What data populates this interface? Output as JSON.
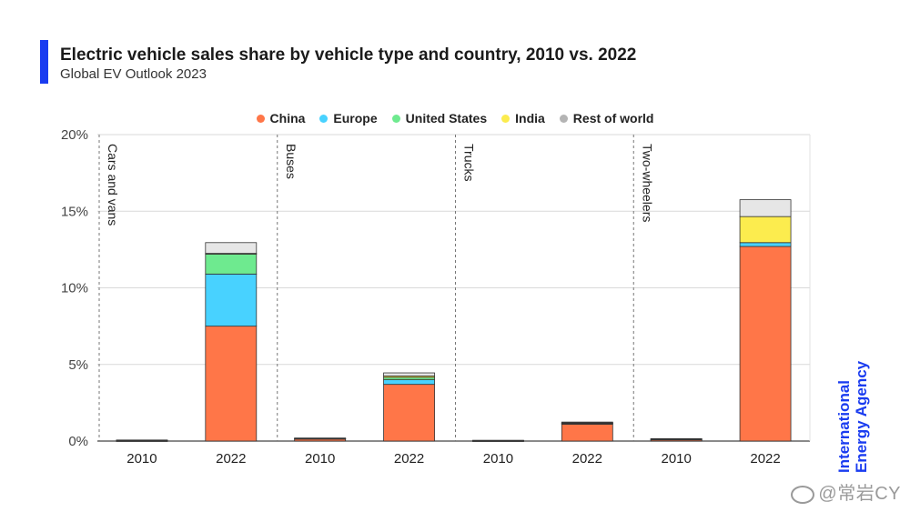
{
  "header": {
    "title": "Electric vehicle sales share by vehicle type and country, 2010 vs. 2022",
    "subtitle": "Global EV Outlook 2023"
  },
  "brand": {
    "line1": "International",
    "line2": "Energy Agency"
  },
  "watermark": {
    "text": "@常岩CY"
  },
  "colors": {
    "China": "#ff7648",
    "Europe": "#48d2ff",
    "United States": "#6eea8f",
    "India": "#fcec4e",
    "Rest of world": "#e6e6e6",
    "accent": "#1a3cf0"
  },
  "chart_data": {
    "type": "bar",
    "stacked": true,
    "yunit": "%",
    "ylim": [
      0,
      20
    ],
    "yticks": [
      0,
      5,
      10,
      15,
      20
    ],
    "ytick_labels": [
      "0%",
      "5%",
      "10%",
      "15%",
      "20%"
    ],
    "grid": true,
    "legend_position": "top-center",
    "series_names": [
      "China",
      "Europe",
      "United States",
      "India",
      "Rest of world"
    ],
    "groups": [
      {
        "label": "Cars and vans",
        "bars": [
          {
            "x": "2010",
            "values": [
              0.02,
              0.02,
              0.02,
              0,
              0.01
            ]
          },
          {
            "x": "2022",
            "values": [
              7.5,
              3.4,
              1.3,
              0.05,
              0.7
            ]
          }
        ]
      },
      {
        "label": "Buses",
        "bars": [
          {
            "x": "2010",
            "values": [
              0.15,
              0.02,
              0.01,
              0,
              0.02
            ]
          },
          {
            "x": "2022",
            "values": [
              3.7,
              0.3,
              0.15,
              0.1,
              0.2
            ]
          }
        ]
      },
      {
        "label": "Trucks",
        "bars": [
          {
            "x": "2010",
            "values": [
              0.02,
              0.01,
              0.01,
              0,
              0.01
            ]
          },
          {
            "x": "2022",
            "values": [
              1.1,
              0.05,
              0.03,
              0.01,
              0.05
            ]
          }
        ]
      },
      {
        "label": "Two-wheelers",
        "bars": [
          {
            "x": "2010",
            "values": [
              0.1,
              0.02,
              0,
              0.02,
              0.02
            ]
          },
          {
            "x": "2022",
            "values": [
              12.7,
              0.25,
              0,
              1.7,
              1.1
            ]
          }
        ]
      }
    ]
  }
}
